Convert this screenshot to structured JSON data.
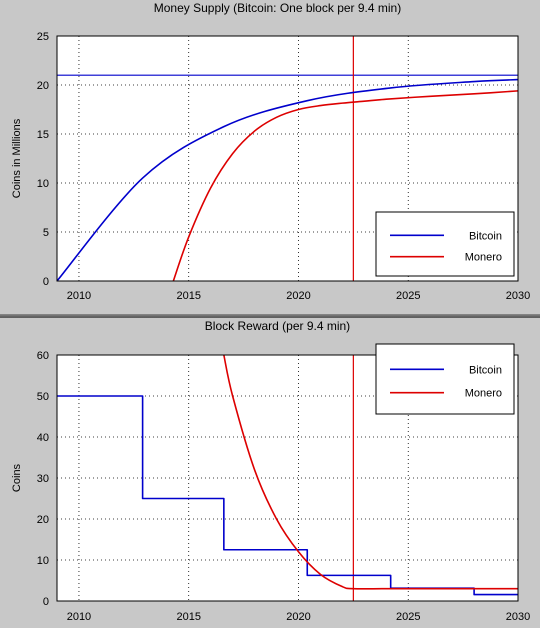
{
  "chart_data": [
    {
      "type": "line",
      "title": "Money Supply (Bitcoin: One block per 9.4 min)",
      "xlabel": "",
      "ylabel": "Coins in Millions",
      "xlim": [
        2009,
        2030
      ],
      "ylim": [
        0,
        25
      ],
      "xticks": [
        2010,
        2015,
        2020,
        2025,
        2030
      ],
      "yticks": [
        0,
        5,
        10,
        15,
        20,
        25
      ],
      "grid": true,
      "legend_position": "bottom-right",
      "reference_lines": [
        {
          "orientation": "horizontal",
          "value": 21,
          "color": "#0000cc"
        },
        {
          "orientation": "vertical",
          "value": 2022.5,
          "color": "#dd0000"
        }
      ],
      "series": [
        {
          "name": "Bitcoin",
          "color": "#0000cc",
          "x": [
            2009,
            2012.9,
            2016.6,
            2020.4,
            2024.2,
            2028,
            2030
          ],
          "y": [
            0,
            10.5,
            15.75,
            18.4,
            19.7,
            20.35,
            20.55
          ]
        },
        {
          "name": "Monero",
          "color": "#dd0000",
          "x": [
            2014.3,
            2015,
            2016,
            2017,
            2018,
            2019,
            2020,
            2021,
            2022,
            2023,
            2024,
            2026,
            2028,
            2030
          ],
          "y": [
            0,
            4.5,
            9.5,
            13.0,
            15.3,
            16.7,
            17.5,
            17.9,
            18.15,
            18.35,
            18.55,
            18.85,
            19.1,
            19.4
          ]
        }
      ]
    },
    {
      "type": "line",
      "title": "Block Reward (per 9.4 min)",
      "xlabel": "",
      "ylabel": "Coins",
      "xlim": [
        2009,
        2030
      ],
      "ylim": [
        0,
        60
      ],
      "xticks": [
        2010,
        2015,
        2020,
        2025,
        2030
      ],
      "yticks": [
        0,
        10,
        20,
        30,
        40,
        50,
        60
      ],
      "grid": true,
      "legend_position": "top-right",
      "reference_lines": [
        {
          "orientation": "vertical",
          "value": 2022.5,
          "color": "#dd0000"
        }
      ],
      "series": [
        {
          "name": "Bitcoin",
          "color": "#0000cc",
          "step": true,
          "x": [
            2009,
            2012.9,
            2012.9,
            2016.6,
            2016.6,
            2020.4,
            2020.4,
            2024.2,
            2024.2,
            2028,
            2028,
            2030
          ],
          "y": [
            50,
            50,
            25,
            25,
            12.5,
            12.5,
            6.25,
            6.25,
            3.125,
            3.125,
            1.5625,
            1.5625
          ]
        },
        {
          "name": "Monero",
          "color": "#dd0000",
          "x": [
            2016.6,
            2017,
            2018,
            2019,
            2020,
            2021,
            2022,
            2022.5,
            2024,
            2026,
            2028,
            2030
          ],
          "y": [
            60,
            50,
            32,
            20,
            12,
            6.5,
            3.5,
            3.0,
            3.0,
            3.0,
            3.0,
            3.0
          ]
        }
      ]
    }
  ]
}
